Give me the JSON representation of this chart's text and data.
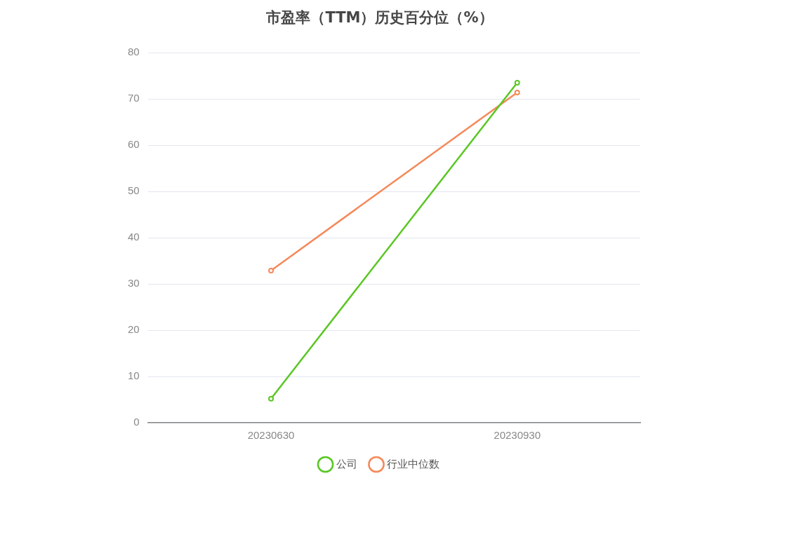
{
  "chart_data": {
    "type": "line",
    "title": "市盈率（TTM）历史百分位（%）",
    "categories": [
      "20230630",
      "20230930"
    ],
    "series": [
      {
        "name": "公司",
        "color": "#5ac724",
        "values": [
          5.2,
          73.5
        ]
      },
      {
        "name": "行业中位数",
        "color": "#f5895a",
        "values": [
          32.9,
          71.4
        ]
      }
    ],
    "ylim": [
      0,
      80
    ],
    "yticks": [
      0,
      10,
      20,
      30,
      40,
      50,
      60,
      70,
      80
    ],
    "grid": "y",
    "legend": "bottom",
    "marker": "circle",
    "line_style": "solid"
  }
}
